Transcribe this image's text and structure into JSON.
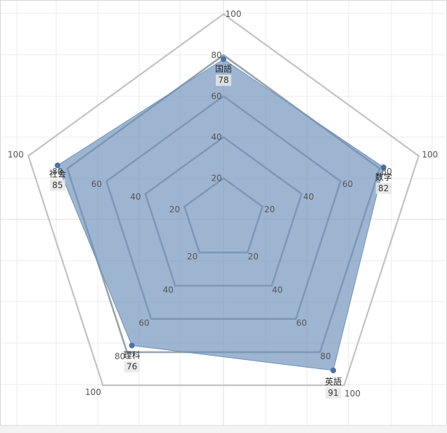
{
  "chart_data": {
    "type": "radar",
    "categories": [
      "国語",
      "数学",
      "英語",
      "理科",
      "社会"
    ],
    "values": [
      78,
      82,
      91,
      76,
      85
    ],
    "rlim": [
      0,
      100
    ],
    "ticks": [
      20,
      40,
      60,
      80,
      100
    ],
    "tick_labels": [
      "20",
      "40",
      "60",
      "80",
      "100"
    ],
    "grid": true,
    "legend": "none",
    "colors": {
      "fill": "#6f92bb",
      "point": "#4a72a8",
      "ring": "#8d98a4",
      "outer_ring": "#c2c2c2",
      "background_grid": "#ebebeb"
    }
  }
}
